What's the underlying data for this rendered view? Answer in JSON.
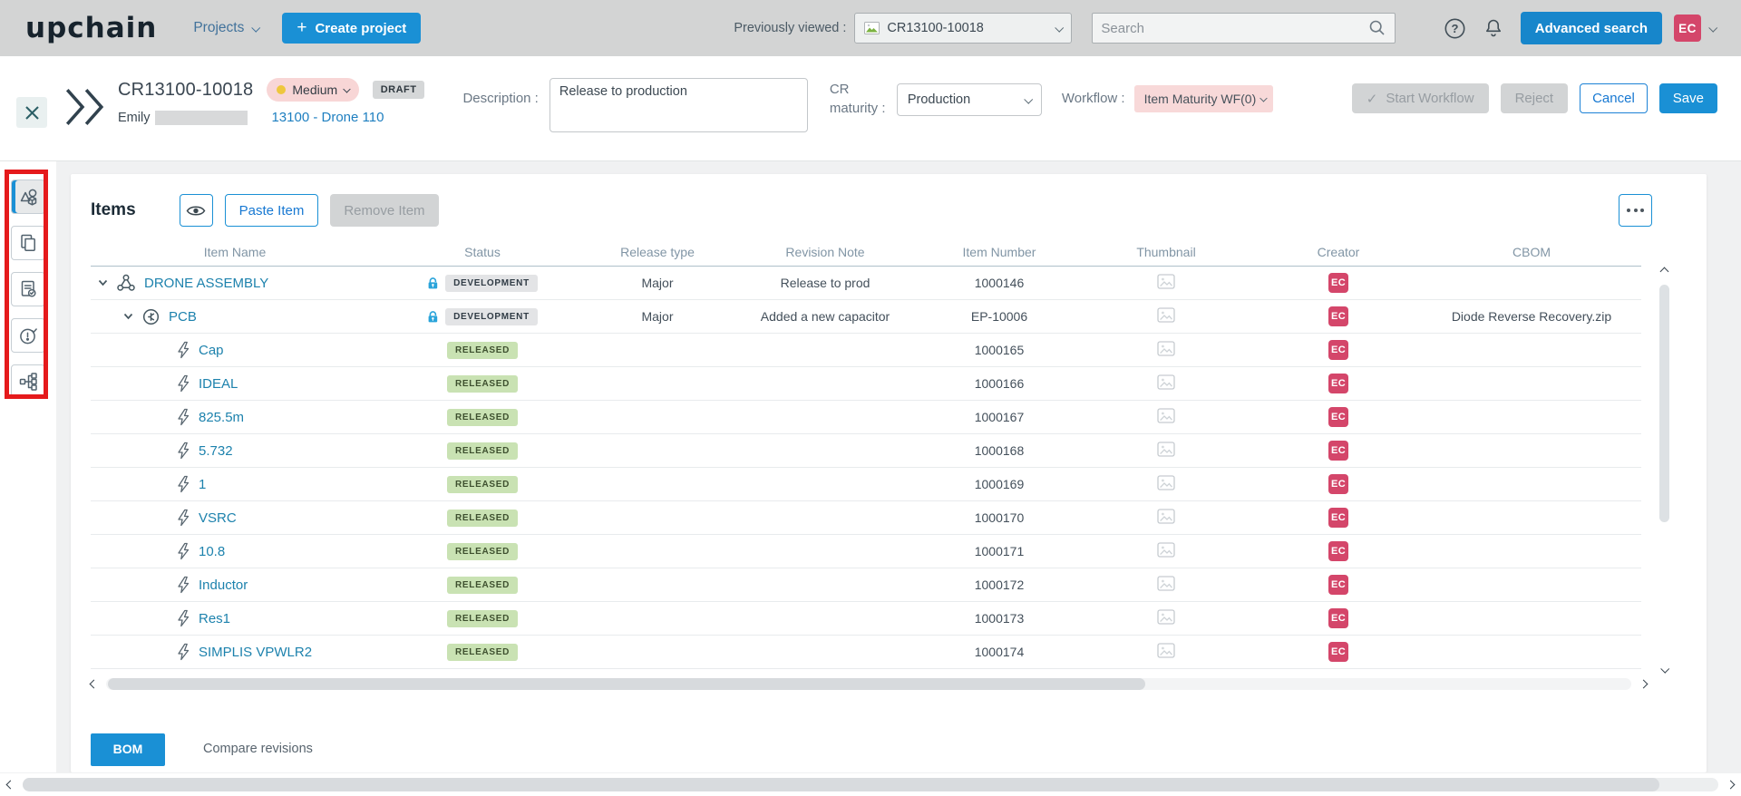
{
  "colors": {
    "accent_blue": "#1a90d5",
    "link_blue": "#1e7fc0",
    "item_link_teal": "#1d82ad",
    "avatar_pink": "#d4466a",
    "released_green_bg": "#c9e2b3",
    "development_gray_bg": "#e3e4e6",
    "priority_pink_bg": "#f8d6d6",
    "annotation_red": "#e51a1c",
    "navbar_gray": "#d3d4d4"
  },
  "navbar": {
    "logo": "upchain",
    "projects_label": "Projects",
    "create_project_label": "Create project",
    "plus_glyph": "+",
    "previously_viewed_label": "Previously viewed :",
    "previously_viewed_value": "CR13100-10018",
    "search_placeholder": "Search",
    "advanced_search_label": "Advanced search",
    "avatar_initials": "EC"
  },
  "header": {
    "title": "CR13100-10018",
    "priority_value": "Medium",
    "status_badge": "DRAFT",
    "author_first_name": "Emily",
    "project_link": "13100 - Drone 110",
    "description_label": "Description :",
    "description_value": "Release to production",
    "cr_maturity_label": "CR maturity :",
    "cr_maturity_value": "Production",
    "workflow_label": "Workflow :",
    "workflow_value": "Item Maturity WF(0)",
    "buttons": {
      "start_workflow": "Start Workflow",
      "start_workflow_check": "✓",
      "reject": "Reject",
      "cancel": "Cancel",
      "save": "Save"
    }
  },
  "sidebar": {
    "items": [
      {
        "icon": "parts-3d-icon",
        "active": true
      },
      {
        "icon": "copy-documents-icon",
        "active": false
      },
      {
        "icon": "document-check-icon",
        "active": false
      },
      {
        "icon": "issue-check-icon",
        "active": false
      },
      {
        "icon": "bom-structure-icon",
        "active": false
      }
    ]
  },
  "items_panel": {
    "title": "Items",
    "paste_label": "Paste Item",
    "remove_label": "Remove Item",
    "columns": [
      "Item Name",
      "Status",
      "Release type",
      "Revision Note",
      "Item Number",
      "Thumbnail",
      "Creator",
      "CBOM"
    ],
    "rows": [
      {
        "name": "DRONE ASSEMBLY",
        "level": 0,
        "icon": "assembly-icon",
        "expandable": true,
        "lock": true,
        "status": "DEVELOPMENT",
        "release_type": "Major",
        "revision_note": "Release to prod",
        "item_number": "1000146",
        "creator": "EC",
        "cbom": ""
      },
      {
        "name": "PCB",
        "level": 1,
        "icon": "pcb-component-icon",
        "expandable": true,
        "lock": true,
        "status": "DEVELOPMENT",
        "release_type": "Major",
        "revision_note": "Added a new capacitor",
        "item_number": "EP-10006",
        "creator": "EC",
        "cbom": "Diode Reverse Recovery.zip"
      },
      {
        "name": "Cap",
        "level": 2,
        "icon": "bolt-icon",
        "expandable": false,
        "lock": false,
        "status": "RELEASED",
        "release_type": "",
        "revision_note": "",
        "item_number": "1000165",
        "creator": "EC",
        "cbom": ""
      },
      {
        "name": "IDEAL",
        "level": 2,
        "icon": "bolt-icon",
        "expandable": false,
        "lock": false,
        "status": "RELEASED",
        "release_type": "",
        "revision_note": "",
        "item_number": "1000166",
        "creator": "EC",
        "cbom": ""
      },
      {
        "name": "825.5m",
        "level": 2,
        "icon": "bolt-icon",
        "expandable": false,
        "lock": false,
        "status": "RELEASED",
        "release_type": "",
        "revision_note": "",
        "item_number": "1000167",
        "creator": "EC",
        "cbom": ""
      },
      {
        "name": "5.732",
        "level": 2,
        "icon": "bolt-icon",
        "expandable": false,
        "lock": false,
        "status": "RELEASED",
        "release_type": "",
        "revision_note": "",
        "item_number": "1000168",
        "creator": "EC",
        "cbom": ""
      },
      {
        "name": "1",
        "level": 2,
        "icon": "bolt-icon",
        "expandable": false,
        "lock": false,
        "status": "RELEASED",
        "release_type": "",
        "revision_note": "",
        "item_number": "1000169",
        "creator": "EC",
        "cbom": ""
      },
      {
        "name": "VSRC",
        "level": 2,
        "icon": "bolt-icon",
        "expandable": false,
        "lock": false,
        "status": "RELEASED",
        "release_type": "",
        "revision_note": "",
        "item_number": "1000170",
        "creator": "EC",
        "cbom": ""
      },
      {
        "name": "10.8",
        "level": 2,
        "icon": "bolt-icon",
        "expandable": false,
        "lock": false,
        "status": "RELEASED",
        "release_type": "",
        "revision_note": "",
        "item_number": "1000171",
        "creator": "EC",
        "cbom": ""
      },
      {
        "name": "Inductor",
        "level": 2,
        "icon": "bolt-icon",
        "expandable": false,
        "lock": false,
        "status": "RELEASED",
        "release_type": "",
        "revision_note": "",
        "item_number": "1000172",
        "creator": "EC",
        "cbom": ""
      },
      {
        "name": "Res1",
        "level": 2,
        "icon": "bolt-icon",
        "expandable": false,
        "lock": false,
        "status": "RELEASED",
        "release_type": "",
        "revision_note": "",
        "item_number": "1000173",
        "creator": "EC",
        "cbom": ""
      },
      {
        "name": "SIMPLIS VPWLR2",
        "level": 2,
        "icon": "bolt-icon",
        "expandable": false,
        "lock": false,
        "status": "RELEASED",
        "release_type": "",
        "revision_note": "",
        "item_number": "1000174",
        "creator": "EC",
        "cbom": ""
      }
    ],
    "tabs": {
      "bom": "BOM",
      "compare": "Compare revisions"
    }
  }
}
